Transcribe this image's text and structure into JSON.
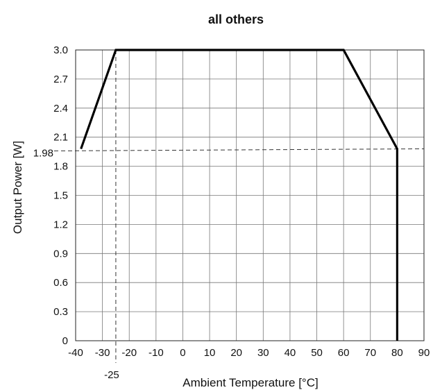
{
  "chart_data": {
    "type": "line",
    "title": "all others",
    "xlabel": "Ambient Temperature [°C]",
    "ylabel": "Output Power [W]",
    "xlim": [
      -40,
      90
    ],
    "ylim": [
      0,
      3.0
    ],
    "x_ticks": [
      "-40",
      "-30",
      "-20",
      "-10",
      "0",
      "10",
      "20",
      "30",
      "40",
      "50",
      "60",
      "70",
      "80",
      "90"
    ],
    "y_ticks": [
      "0",
      "0.3",
      "0.6",
      "0.9",
      "1.2",
      "1.5",
      "1.8",
      "2.1",
      "2.4",
      "2.7",
      "3.0"
    ],
    "grid": true,
    "series": [
      {
        "x": [
          -38,
          -25,
          60,
          80,
          80
        ],
        "y": [
          1.98,
          3.0,
          3.0,
          1.98,
          0
        ],
        "color": "#000000"
      }
    ],
    "reference_lines": [
      {
        "label": "1.98",
        "axis": "y",
        "value": 1.98
      },
      {
        "label": "-25",
        "axis": "x",
        "value": -25
      }
    ]
  }
}
